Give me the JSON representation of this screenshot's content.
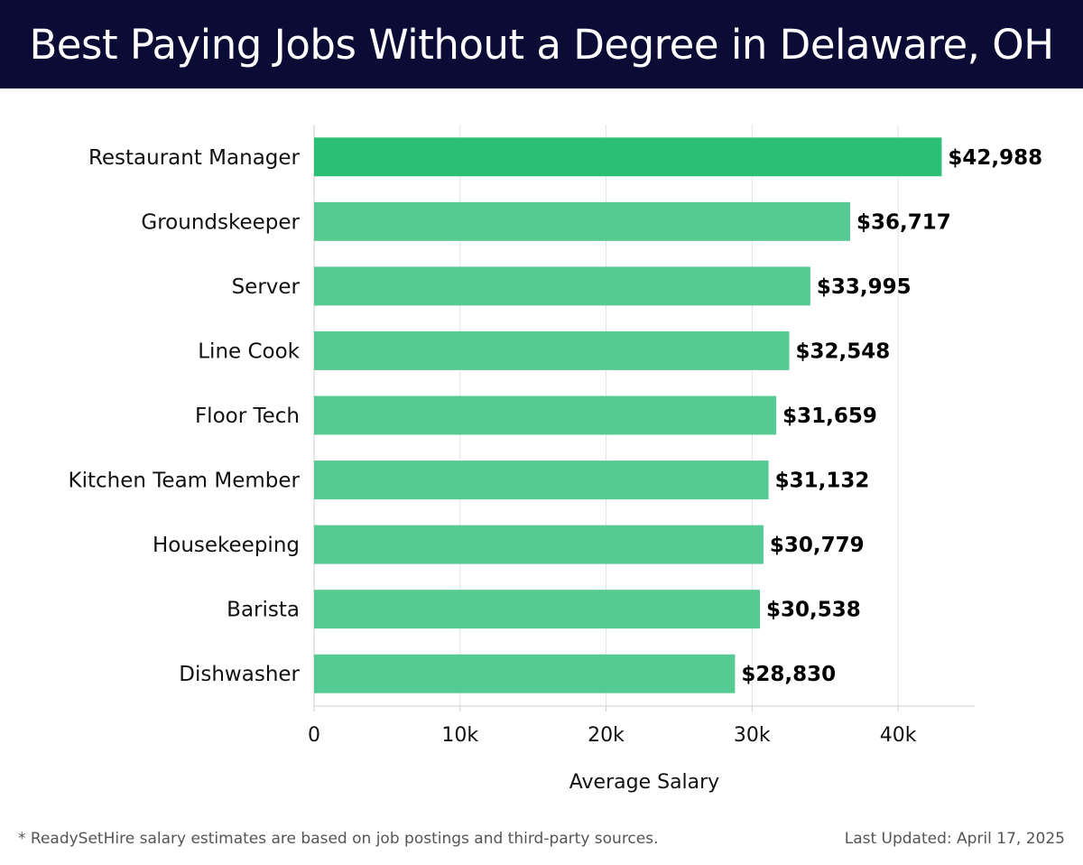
{
  "header": {
    "title": "Best Paying Jobs Without a Degree in Delaware, OH",
    "background": "#0b0c35"
  },
  "footer": {
    "footnote": "* ReadySetHire salary estimates are based on job postings and third-party sources.",
    "updated": "Last Updated: April 17, 2025"
  },
  "chart_data": {
    "type": "bar",
    "orientation": "horizontal",
    "categories": [
      "Restaurant Manager",
      "Groundskeeper",
      "Server",
      "Line Cook",
      "Floor Tech",
      "Kitchen Team Member",
      "Housekeeping",
      "Barista",
      "Dishwasher"
    ],
    "values": [
      42988,
      36717,
      33995,
      32548,
      31659,
      31132,
      30779,
      30538,
      28830
    ],
    "value_labels": [
      "$42,988",
      "$36,717",
      "$33,995",
      "$32,548",
      "$31,659",
      "$31,132",
      "$30,779",
      "$30,538",
      "$28,830"
    ],
    "xlabel": "Average Salary",
    "ylabel": "",
    "xlim": [
      0,
      45250
    ],
    "xticks": [
      0,
      10000,
      20000,
      30000,
      40000
    ],
    "xtick_labels": [
      "0",
      "10k",
      "20k",
      "30k",
      "40k"
    ],
    "grid": true,
    "bar_color_top": "#2bbf74",
    "bar_color": "#55ca93"
  }
}
